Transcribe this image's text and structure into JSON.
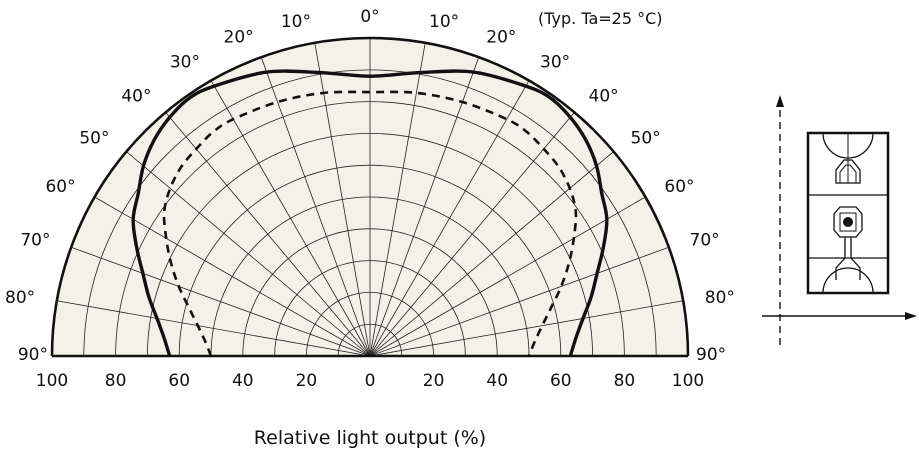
{
  "chart_data": {
    "type": "polar",
    "note": "(Typ. Ta=25 °C)",
    "xlabel": "Relative light output (%)",
    "radial_range": [
      0,
      100
    ],
    "radial_ticks": [
      "100",
      "80",
      "60",
      "40",
      "20",
      "0",
      "20",
      "40",
      "60",
      "80",
      "100"
    ],
    "angle_labels": [
      "90°",
      "80°",
      "70°",
      "60°",
      "50°",
      "40°",
      "30°",
      "20°",
      "10°",
      "0°",
      "10°",
      "20°",
      "30°",
      "40°",
      "50°",
      "60°",
      "70°",
      "80°",
      "90°"
    ],
    "angle_range_deg": [
      -90,
      90
    ],
    "grid": true,
    "series": [
      {
        "style": "solid",
        "points": [
          {
            "angle": 0,
            "value": 88
          },
          {
            "angle": 10,
            "value": 90.5
          },
          {
            "angle": 20,
            "value": 95
          },
          {
            "angle": 30,
            "value": 98
          },
          {
            "angle": 35,
            "value": 99
          },
          {
            "angle": 40,
            "value": 98
          },
          {
            "angle": 45,
            "value": 96
          },
          {
            "angle": 50,
            "value": 93
          },
          {
            "angle": 55,
            "value": 89
          },
          {
            "angle": 60,
            "value": 86
          },
          {
            "angle": 65,
            "value": 81
          },
          {
            "angle": 70,
            "value": 76
          },
          {
            "angle": 75,
            "value": 72
          },
          {
            "angle": 80,
            "value": 68
          },
          {
            "angle": 85,
            "value": 65
          },
          {
            "angle": 90,
            "value": 63
          }
        ]
      },
      {
        "style": "dashed",
        "points": [
          {
            "angle": 0,
            "value": 83
          },
          {
            "angle": 10,
            "value": 84
          },
          {
            "angle": 20,
            "value": 85
          },
          {
            "angle": 30,
            "value": 86
          },
          {
            "angle": 35,
            "value": 86
          },
          {
            "angle": 40,
            "value": 85
          },
          {
            "angle": 45,
            "value": 84
          },
          {
            "angle": 50,
            "value": 82
          },
          {
            "angle": 55,
            "value": 79
          },
          {
            "angle": 60,
            "value": 74
          },
          {
            "angle": 65,
            "value": 69
          },
          {
            "angle": 70,
            "value": 64
          },
          {
            "angle": 75,
            "value": 59
          },
          {
            "angle": 80,
            "value": 55
          },
          {
            "angle": 85,
            "value": 52
          },
          {
            "angle": 90,
            "value": 50
          }
        ]
      }
    ]
  },
  "package_icon": "led-package-orientation-icon"
}
